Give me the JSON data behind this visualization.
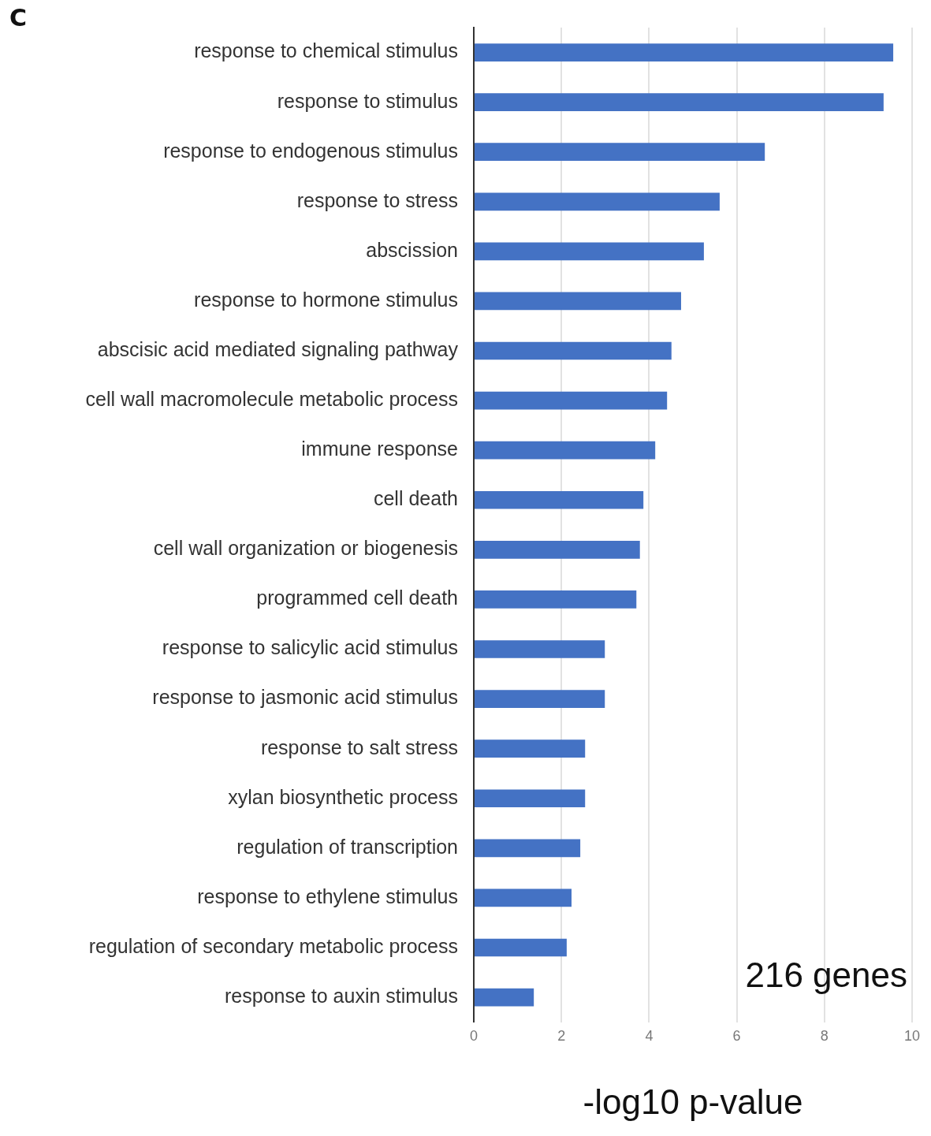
{
  "chart_data": {
    "type": "bar",
    "orientation": "horizontal",
    "xlabel": "-log10 p-value",
    "categories": [
      "response to chemical stimulus",
      "response to stimulus",
      "response to endogenous stimulus",
      "response to stress",
      "abscission",
      "response to hormone stimulus",
      "abscisic acid mediated signaling pathway",
      "cell wall macromolecule metabolic process",
      "immune response",
      "cell death",
      "cell wall organization or biogenesis",
      "programmed cell death",
      "response to salicylic acid stimulus",
      "response to jasmonic acid stimulus",
      "response to salt stress",
      "xylan biosynthetic process",
      "regulation of transcription",
      "response to ethylene stimulus",
      "regulation of secondary metabolic process",
      "response to auxin stimulus"
    ],
    "values": [
      9.57,
      9.35,
      6.64,
      5.61,
      5.25,
      4.73,
      4.51,
      4.41,
      4.14,
      3.87,
      3.79,
      3.71,
      2.99,
      2.99,
      2.54,
      2.54,
      2.43,
      2.23,
      2.12,
      1.37
    ],
    "color": "#4472c4",
    "xlim": [
      0,
      10
    ],
    "xticks": [
      0,
      2,
      4,
      6,
      8,
      10
    ],
    "grid": "x",
    "legend": false,
    "annotations": [
      "C",
      "216 genes"
    ]
  }
}
